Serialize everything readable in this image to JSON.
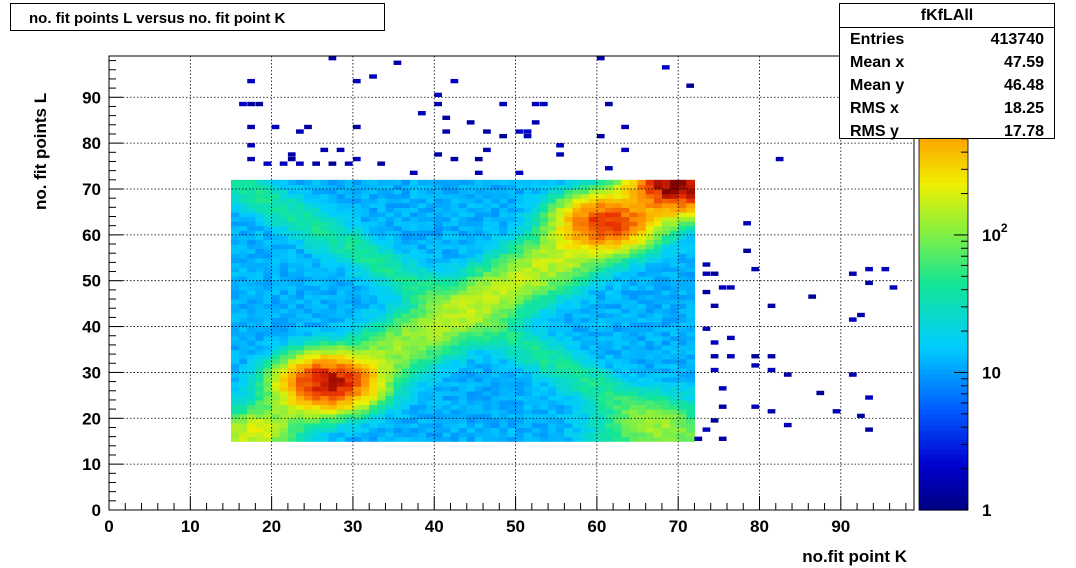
{
  "title_box": {
    "text": "no. fit points L versus no. fit point K"
  },
  "stats": {
    "name": "fKfLAll",
    "rows": [
      {
        "label": "Entries",
        "value": "413740"
      },
      {
        "label": "Mean x",
        "value": "47.59"
      },
      {
        "label": "Mean y",
        "value": "46.48"
      },
      {
        "label": "RMS x",
        "value": "18.25"
      },
      {
        "label": "RMS y",
        "value": "17.78"
      }
    ]
  },
  "chart_data": {
    "type": "heatmap",
    "title": "no. fit points L versus no. fit point K",
    "xlabel": "no.fit point K",
    "ylabel": "no. fit points  L",
    "xlim": [
      0,
      99
    ],
    "ylim": [
      0,
      99
    ],
    "x_ticks": [
      "0",
      "10",
      "20",
      "30",
      "40",
      "50",
      "60",
      "70",
      "80",
      "90"
    ],
    "y_ticks": [
      "0",
      "10",
      "20",
      "30",
      "40",
      "50",
      "60",
      "70",
      "80",
      "90"
    ],
    "grid": true,
    "z_scale": "log",
    "colorbar_labels": [
      "1",
      "10",
      "10^2"
    ],
    "colorbar_label_values": [
      1,
      10,
      100
    ],
    "zlim": [
      1,
      2000
    ],
    "dense_region": {
      "x": [
        15,
        72
      ],
      "y": [
        15,
        72
      ]
    },
    "ridges": [
      {
        "x0": 15,
        "y0": 15,
        "x1": 72,
        "y1": 72,
        "peak_counts": 1500
      },
      {
        "x0": 15,
        "y0": 72,
        "x1": 72,
        "y1": 15,
        "peak_counts": 30
      }
    ],
    "hotspots": [
      {
        "x": 27,
        "y": 28,
        "counts": 1500
      },
      {
        "x": 61,
        "y": 63,
        "counts": 1000
      },
      {
        "x": 70,
        "y": 71,
        "counts": 1800
      }
    ],
    "sparse_cells": [
      [
        17,
        93
      ],
      [
        16,
        88
      ],
      [
        17,
        88
      ],
      [
        18,
        88
      ],
      [
        17,
        83
      ],
      [
        17,
        79
      ],
      [
        17,
        76
      ],
      [
        22,
        77
      ],
      [
        26,
        78
      ],
      [
        28,
        78
      ],
      [
        23,
        82
      ],
      [
        24,
        83
      ],
      [
        20,
        83
      ],
      [
        19,
        75
      ],
      [
        21,
        75
      ],
      [
        23,
        75
      ],
      [
        22,
        76
      ],
      [
        25,
        75
      ],
      [
        27,
        75
      ],
      [
        29,
        75
      ],
      [
        30,
        76
      ],
      [
        33,
        75
      ],
      [
        27,
        98
      ],
      [
        30,
        93
      ],
      [
        32,
        94
      ],
      [
        35,
        97
      ],
      [
        38,
        86
      ],
      [
        30,
        83
      ],
      [
        40,
        90
      ],
      [
        40,
        88
      ],
      [
        40,
        77
      ],
      [
        42,
        76
      ],
      [
        42,
        93
      ],
      [
        41,
        85
      ],
      [
        41,
        82
      ],
      [
        44,
        84
      ],
      [
        45,
        76
      ],
      [
        46,
        82
      ],
      [
        46,
        78
      ],
      [
        48,
        81
      ],
      [
        48,
        88
      ],
      [
        50,
        82
      ],
      [
        51,
        82
      ],
      [
        52,
        88
      ],
      [
        53,
        88
      ],
      [
        51,
        81
      ],
      [
        52,
        84
      ],
      [
        55,
        79
      ],
      [
        55,
        77
      ],
      [
        60,
        98
      ],
      [
        61,
        88
      ],
      [
        60,
        81
      ],
      [
        63,
        83
      ],
      [
        63,
        78
      ],
      [
        68,
        96
      ],
      [
        71,
        92
      ],
      [
        82,
        76
      ],
      [
        37,
        73
      ],
      [
        45,
        73
      ],
      [
        50,
        73
      ],
      [
        61,
        74
      ],
      [
        73,
        53
      ],
      [
        73,
        51
      ],
      [
        74,
        51
      ],
      [
        73,
        47
      ],
      [
        74,
        44
      ],
      [
        75,
        48
      ],
      [
        76,
        48
      ],
      [
        78,
        62
      ],
      [
        78,
        56
      ],
      [
        79,
        52
      ],
      [
        81,
        44
      ],
      [
        86,
        46
      ],
      [
        91,
        41
      ],
      [
        92,
        42
      ],
      [
        93,
        49
      ],
      [
        93,
        52
      ],
      [
        91,
        51
      ],
      [
        95,
        52
      ],
      [
        96,
        48
      ],
      [
        73,
        39
      ],
      [
        74,
        36
      ],
      [
        74,
        33
      ],
      [
        74,
        30
      ],
      [
        75,
        26
      ],
      [
        75,
        22
      ],
      [
        74,
        19
      ],
      [
        73,
        17
      ],
      [
        72,
        15
      ],
      [
        75,
        15
      ],
      [
        76,
        33
      ],
      [
        76,
        37
      ],
      [
        79,
        33
      ],
      [
        79,
        31
      ],
      [
        81,
        33
      ],
      [
        81,
        30
      ],
      [
        83,
        29
      ],
      [
        79,
        22
      ],
      [
        81,
        21
      ],
      [
        83,
        18
      ],
      [
        87,
        25
      ],
      [
        89,
        21
      ],
      [
        91,
        29
      ],
      [
        92,
        20
      ],
      [
        93,
        24
      ],
      [
        93,
        17
      ]
    ]
  }
}
